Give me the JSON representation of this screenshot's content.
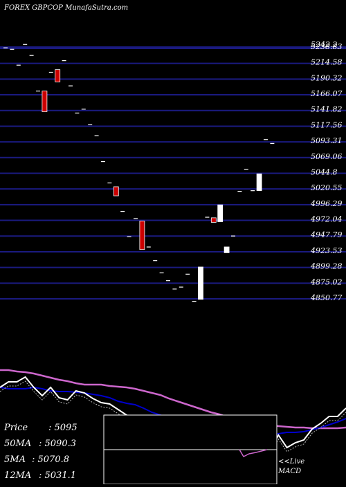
{
  "title": "FOREX  GBPCOP MunafaSutra.com",
  "colors": {
    "background": "#000000",
    "grid": "#1a1a80",
    "up": "#ffffff",
    "down": "#cc0000",
    "ma50": "#cc66cc",
    "ma12": "#0000cc",
    "price_line": "#ffffff"
  },
  "price_axis": {
    "labels": [
      "5242.2",
      "5238.83",
      "5214.58",
      "5190.32",
      "5166.07",
      "5141.82",
      "5117.56",
      "5093.31",
      "5069.06",
      "5044.8",
      "5020.55",
      "4996.29",
      "4972.04",
      "4947.79",
      "4923.53",
      "4899.28",
      "4875.02",
      "4850.77"
    ],
    "values": [
      5242.2,
      5238.83,
      5214.58,
      5190.32,
      5166.07,
      5141.82,
      5117.56,
      5093.31,
      5069.06,
      5044.8,
      5020.55,
      4996.29,
      4972.04,
      4947.79,
      4923.53,
      4899.28,
      4875.02,
      4850.77
    ],
    "min": 4850.77,
    "max": 5238.83
  },
  "chart_data": {
    "type": "candlestick",
    "title": "FOREX  GBPCOP MunafaSutra.com",
    "candles": [
      {
        "open": 5238.8,
        "close": 5238.8,
        "color": "up"
      },
      {
        "open": 5236.5,
        "close": 5236.5,
        "color": "up"
      },
      {
        "open": 5212.0,
        "close": 5212.0,
        "color": "up"
      },
      {
        "open": 5244.0,
        "close": 5244.0,
        "color": "up"
      },
      {
        "open": 5227.0,
        "close": 5227.0,
        "color": "up"
      },
      {
        "open": 5172.0,
        "close": 5172.0,
        "color": "up"
      },
      {
        "open": 5172.0,
        "close": 5140.0,
        "color": "down"
      },
      {
        "open": 5201.0,
        "close": 5201.0,
        "color": "up"
      },
      {
        "open": 5205.0,
        "close": 5186.0,
        "color": "down"
      },
      {
        "open": 5219.0,
        "close": 5219.0,
        "color": "up"
      },
      {
        "open": 5180.0,
        "close": 5180.0,
        "color": "up"
      },
      {
        "open": 5138.0,
        "close": 5138.0,
        "color": "up"
      },
      {
        "open": 5144.0,
        "close": 5144.0,
        "color": "up"
      },
      {
        "open": 5120.0,
        "close": 5120.0,
        "color": "up"
      },
      {
        "open": 5103.0,
        "close": 5103.0,
        "color": "up"
      },
      {
        "open": 5063.0,
        "close": 5063.0,
        "color": "up"
      },
      {
        "open": 5030.0,
        "close": 5030.0,
        "color": "up"
      },
      {
        "open": 5024.0,
        "close": 5010.0,
        "color": "down"
      },
      {
        "open": 4986.0,
        "close": 4986.0,
        "color": "up"
      },
      {
        "open": 4947.0,
        "close": 4947.0,
        "color": "up"
      },
      {
        "open": 4975.0,
        "close": 4975.0,
        "color": "up"
      },
      {
        "open": 4971.0,
        "close": 4927.0,
        "color": "down"
      },
      {
        "open": 4931.0,
        "close": 4931.0,
        "color": "up"
      },
      {
        "open": 4910.0,
        "close": 4910.0,
        "color": "up"
      },
      {
        "open": 4891.0,
        "close": 4891.0,
        "color": "up"
      },
      {
        "open": 4879.0,
        "close": 4879.0,
        "color": "up"
      },
      {
        "open": 4866.0,
        "close": 4866.0,
        "color": "up"
      },
      {
        "open": 4869.0,
        "close": 4869.0,
        "color": "up"
      },
      {
        "open": 4889.0,
        "close": 4889.0,
        "color": "up"
      },
      {
        "open": 4847.0,
        "close": 4847.0,
        "color": "up"
      },
      {
        "open": 4850.0,
        "close": 4900.0,
        "color": "up"
      },
      {
        "open": 4977.0,
        "close": 4977.0,
        "color": "up"
      },
      {
        "open": 4976.0,
        "close": 4969.0,
        "color": "down"
      },
      {
        "open": 4970.0,
        "close": 4996.0,
        "color": "up"
      },
      {
        "open": 4922.0,
        "close": 4931.0,
        "color": "up"
      },
      {
        "open": 4948.0,
        "close": 4948.0,
        "color": "up"
      },
      {
        "open": 5017.0,
        "close": 5017.0,
        "color": "up"
      },
      {
        "open": 5051.0,
        "close": 5051.0,
        "color": "up"
      },
      {
        "open": 5018.0,
        "close": 5018.0,
        "color": "up"
      },
      {
        "open": 5018.0,
        "close": 5044.0,
        "color": "up"
      },
      {
        "open": 5097.0,
        "close": 5097.0,
        "color": "up"
      },
      {
        "open": 5091.0,
        "close": 5091.0,
        "color": "up"
      }
    ],
    "ma50_line": [
      535,
      535,
      537,
      538,
      540,
      543,
      546,
      549,
      551,
      554,
      556,
      556,
      556,
      558,
      559,
      560,
      562,
      565,
      568,
      571,
      576,
      580,
      584,
      588,
      592,
      596,
      599,
      603,
      606,
      609,
      612,
      614,
      615,
      616,
      617,
      618,
      618,
      619,
      619,
      619,
      619,
      618
    ],
    "ma12_line": [
      560,
      562,
      562,
      562,
      560,
      562,
      565,
      566,
      566,
      567,
      568,
      570,
      572,
      575,
      580,
      583,
      585,
      590,
      596,
      600,
      604,
      608,
      613,
      618,
      621,
      623,
      625,
      626,
      628,
      630,
      632,
      632,
      630,
      627,
      625,
      625,
      624,
      621,
      618,
      614,
      610,
      605
    ],
    "price_line": [
      560,
      552,
      552,
      545,
      560,
      572,
      560,
      575,
      578,
      565,
      568,
      576,
      582,
      584,
      592,
      600,
      615,
      625,
      630,
      638,
      645,
      655,
      663,
      667,
      658,
      650,
      655,
      649,
      652,
      665,
      680,
      658,
      650,
      629,
      647,
      640,
      636,
      620,
      612,
      602,
      602,
      590
    ]
  },
  "info": {
    "price_label": "Price",
    "price_value": ": 5095",
    "ma50_label": "50MA",
    "ma50_value": ": 5090.3",
    "ma5_label": "5MA",
    "ma5_value": ": 5070.8",
    "ma12_label": "12MA",
    "ma12_value": ": 5031.1"
  },
  "macd": {
    "label_line1": "<<Live",
    "label_line2": "MACD"
  }
}
